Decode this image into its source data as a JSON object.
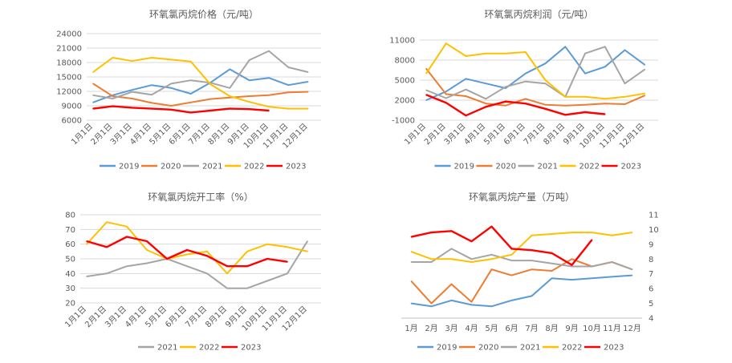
{
  "colors": {
    "2019": "#5b9bd5",
    "2020": "#ed7d31",
    "2021": "#a5a5a5",
    "2022": "#ffc000",
    "2023": "#ff0000"
  },
  "chart_data": [
    {
      "type": "line",
      "title": "环氧氯丙烷价格（元/吨）",
      "xlabel": "",
      "ylabel": "",
      "ylim": [
        6000,
        24000
      ],
      "yticks": [
        "24000",
        "21000",
        "18000",
        "15000",
        "12000",
        "9000",
        "6000"
      ],
      "categories": [
        "1月1日",
        "2月1日",
        "3月1日",
        "4月1日",
        "5月1日",
        "6月1日",
        "7月1日",
        "8月1日",
        "9月1日",
        "10月1日",
        "11月1日",
        "12月1日"
      ],
      "series": [
        {
          "name": "2019",
          "values": [
            9700,
            11200,
            12300,
            13300,
            12700,
            11500,
            13800,
            16600,
            14300,
            14800,
            13300,
            14000
          ]
        },
        {
          "name": "2020",
          "values": [
            13600,
            11000,
            10500,
            9600,
            9000,
            9700,
            10400,
            10700,
            11000,
            11200,
            11800,
            11900
          ]
        },
        {
          "name": "2021",
          "values": [
            11200,
            10500,
            11900,
            11300,
            13600,
            14300,
            13800,
            12700,
            18500,
            20400,
            17000,
            16000
          ]
        },
        {
          "name": "2022",
          "values": [
            16000,
            19000,
            18300,
            19000,
            18600,
            18200,
            13500,
            11000,
            9800,
            8800,
            8400,
            8400
          ]
        },
        {
          "name": "2023",
          "values": [
            8400,
            8900,
            8600,
            8400,
            8200,
            7600,
            8000,
            8400,
            8300,
            8000,
            null,
            null
          ]
        }
      ]
    },
    {
      "type": "line",
      "title": "环氧氯丙烷利润（元/吨）",
      "xlabel": "",
      "ylabel": "",
      "ylim": [
        -1000,
        11000
      ],
      "yticks": [
        "11000",
        "8000",
        "5000",
        "2000",
        "-1000"
      ],
      "categories": [
        "1月1日",
        "2月1日",
        "3月1日",
        "4月1日",
        "5月1日",
        "6月1日",
        "7月1日",
        "8月1日",
        "9月1日",
        "10月1日",
        "11月1日",
        "12月1日"
      ],
      "series": [
        {
          "name": "2019",
          "values": [
            2000,
            3300,
            5200,
            4500,
            3800,
            6000,
            7500,
            10000,
            6000,
            7000,
            9500,
            7300
          ]
        },
        {
          "name": "2020",
          "values": [
            6700,
            2900,
            2600,
            1500,
            1200,
            2200,
            1300,
            1200,
            1300,
            1500,
            1400,
            2700
          ]
        },
        {
          "name": "2021",
          "values": [
            3500,
            2300,
            3600,
            2200,
            4000,
            4800,
            4500,
            2500,
            9000,
            10000,
            4500,
            6600
          ]
        },
        {
          "name": "2022",
          "values": [
            6000,
            10500,
            8600,
            9000,
            9000,
            9200,
            5000,
            2500,
            2500,
            2200,
            2500,
            3000
          ]
        },
        {
          "name": "2023",
          "values": [
            2800,
            1600,
            -300,
            1000,
            1800,
            1500,
            700,
            -200,
            200,
            -100,
            null,
            null
          ]
        }
      ]
    },
    {
      "type": "line",
      "title": "环氧氯丙烷开工率（%）",
      "xlabel": "",
      "ylabel": "",
      "ylim": [
        20,
        80
      ],
      "yticks": [
        "80",
        "70",
        "60",
        "50",
        "40",
        "30",
        "20"
      ],
      "categories": [
        "1月1日",
        "2月1日",
        "3月1日",
        "4月1日",
        "5月1日",
        "6月1日",
        "7月1日",
        "8月1日",
        "9月1日",
        "10月1日",
        "11月1日",
        "12月1日"
      ],
      "series": [
        {
          "name": "2021",
          "values": [
            38,
            40,
            45,
            47,
            50,
            45,
            40,
            30,
            30,
            35,
            40,
            62
          ]
        },
        {
          "name": "2022",
          "values": [
            60,
            75,
            72,
            56,
            50,
            53,
            55,
            40,
            55,
            60,
            58,
            55
          ]
        },
        {
          "name": "2023",
          "values": [
            62,
            58,
            65,
            62,
            50,
            56,
            52,
            45,
            45,
            50,
            48,
            null
          ]
        }
      ]
    },
    {
      "type": "line",
      "title": "环氧氯丙烷产量（万吨）",
      "xlabel": "",
      "ylabel": "",
      "ylim": [
        4,
        11
      ],
      "yticks": [
        "11",
        "10",
        "9",
        "8",
        "7",
        "6",
        "5",
        "4"
      ],
      "categories": [
        "1月",
        "2月",
        "3月",
        "4月",
        "5月",
        "6月",
        "7月",
        "8月",
        "9月",
        "10月",
        "11月",
        "12月"
      ],
      "series": [
        {
          "name": "2019",
          "values": [
            5.0,
            4.8,
            5.2,
            4.9,
            4.8,
            5.2,
            5.5,
            6.7,
            6.6,
            6.7,
            6.8,
            6.9
          ]
        },
        {
          "name": "2020",
          "values": [
            6.5,
            5.0,
            6.3,
            5.1,
            7.3,
            6.9,
            7.3,
            7.2,
            8.0,
            7.5,
            7.8,
            7.3
          ]
        },
        {
          "name": "2021",
          "values": [
            7.8,
            7.8,
            8.7,
            8.0,
            8.3,
            7.9,
            7.9,
            7.7,
            7.5,
            7.5,
            7.8,
            7.3
          ]
        },
        {
          "name": "2022",
          "values": [
            8.5,
            8.0,
            8.0,
            7.8,
            8.0,
            8.3,
            9.6,
            9.7,
            9.8,
            9.8,
            9.6,
            9.8
          ]
        },
        {
          "name": "2023",
          "values": [
            9.5,
            9.8,
            9.9,
            9.2,
            10.2,
            8.7,
            8.6,
            8.4,
            7.6,
            9.3,
            null,
            null
          ]
        }
      ]
    }
  ]
}
